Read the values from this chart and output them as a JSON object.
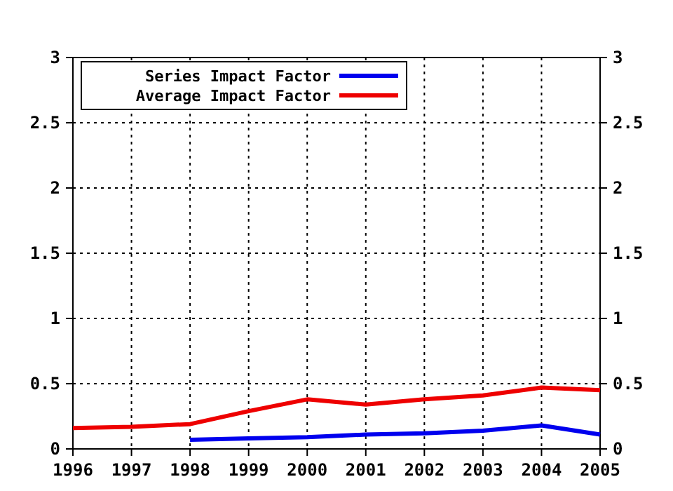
{
  "chart_data": {
    "type": "line",
    "x": [
      1996,
      1997,
      1998,
      1999,
      2000,
      2001,
      2002,
      2003,
      2004,
      2005
    ],
    "series": [
      {
        "name": "Series Impact Factor",
        "color": "#0000ee",
        "values": [
          null,
          null,
          0.07,
          0.08,
          0.09,
          0.11,
          0.12,
          0.14,
          0.18,
          0.11
        ]
      },
      {
        "name": "Average Impact Factor",
        "color": "#ee0000",
        "values": [
          0.16,
          0.17,
          0.19,
          0.29,
          0.38,
          0.34,
          0.38,
          0.41,
          0.47,
          0.45
        ]
      }
    ],
    "xlim": [
      1996,
      2005
    ],
    "xticks": [
      1996,
      1997,
      1998,
      1999,
      2000,
      2001,
      2002,
      2003,
      2004,
      2005
    ],
    "ylim": [
      0,
      3
    ],
    "yticks": [
      0,
      0.5,
      1,
      1.5,
      2,
      2.5,
      3
    ],
    "y2lim": [
      0,
      3
    ],
    "y2ticks": [
      0,
      0.5,
      1,
      1.5,
      2,
      2.5,
      3
    ],
    "grid": true,
    "legend": "top left",
    "line_style": "solid"
  }
}
